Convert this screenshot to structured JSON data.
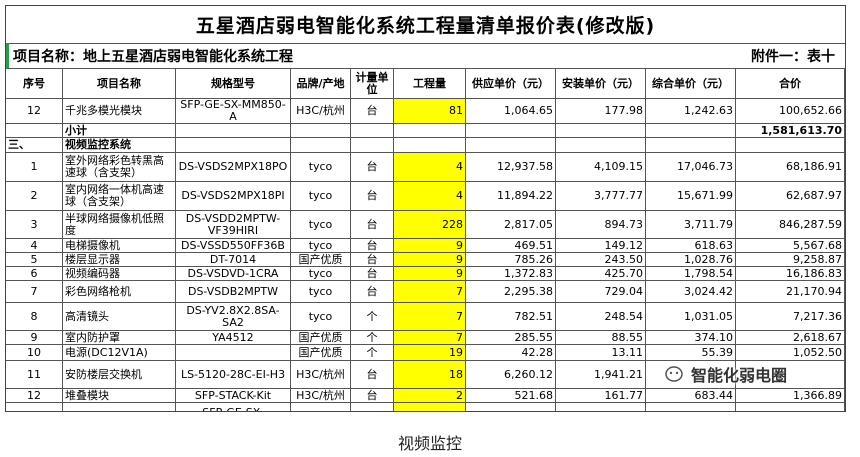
{
  "title": "五星酒店弱电智能化系统工程量清单报价表(修改版)",
  "project_name": "项目名称：地上五星酒店弱电智能化系统工程",
  "attachment": "附件一：表十",
  "header": [
    "序号",
    "项目名称",
    "规格型号",
    "品牌/产地",
    "计量单位",
    "工程量",
    "供应单价（元）",
    "安装单价（元）",
    "综合单价（元）",
    "合价"
  ],
  "rows": [
    [
      "12",
      "千兆多模光模块",
      "SFP-GE-SX-MM850-A",
      "H3C/杭州",
      "台",
      "81",
      "1,064.65",
      "177.98",
      "1,242.63",
      "100,652.66"
    ],
    [
      null,
      "小计",
      null,
      null,
      null,
      null,
      null,
      null,
      null,
      "1,581,613.70"
    ],
    [
      "三、",
      "视频监控系统",
      null,
      null,
      null,
      null,
      null,
      null,
      null,
      null
    ],
    [
      "1",
      "室外网络彩色转黑高速球（含支架）",
      "DS-VSDS2MPX18PO",
      "tyco",
      "台",
      "4",
      "12,937.58",
      "4,109.15",
      "17,046.73",
      "68,186.91"
    ],
    [
      "2",
      "室内网络一体机高速球（含支架）",
      "DS-VSDS2MPX18PI",
      "tyco",
      "台",
      "4",
      "11,894.22",
      "3,777.77",
      "15,671.99",
      "62,687.97"
    ],
    [
      "3",
      "半球网络摄像机低照度",
      "DS-VSDD2MPTW-VF39HIRI",
      "tyco",
      "台",
      "228",
      "2,817.05",
      "894.73",
      "3,711.79",
      "846,287.59"
    ],
    [
      "4",
      "电梯摄像机",
      "DS-VSSD550FF36B",
      "tyco",
      "台",
      "9",
      "469.51",
      "149.12",
      "618.63",
      "5,567.68"
    ],
    [
      "5",
      "楼层显示器",
      "DT-7014",
      "国产优质",
      "台",
      "9",
      "785.26",
      "243.50",
      "1,028.76",
      "9,258.87"
    ],
    [
      "6",
      "视频编码器",
      "DS-VSDVD-1CRA",
      "tyco",
      "台",
      "9",
      "1,372.83",
      "425.70",
      "1,798.54",
      "16,186.83"
    ],
    [
      "7",
      "彩色网络枪机",
      "DS-VSDB2MPTW",
      "tyco",
      "台",
      "7",
      "2,295.38",
      "729.04",
      "3,024.42",
      "21,170.94"
    ],
    [
      "8",
      "高清镜头",
      "DS-YV2.8X2.8SA-SA2",
      "tyco",
      "个",
      "7",
      "782.51",
      "248.54",
      "1,031.05",
      "7,217.36"
    ],
    [
      "9",
      "室内防护罩",
      "YA4512",
      "国产优质",
      "个",
      "7",
      "285.55",
      "88.55",
      "374.10",
      "2,618.67"
    ],
    [
      "10",
      "电源(DC12V1A)",
      null,
      "国产优质",
      "个",
      "19",
      "42.28",
      "13.11",
      "55.39",
      "1,052.50"
    ],
    [
      "11",
      "安防楼层交换机",
      "LS-5120-28C-EI-H3",
      "H3C/杭州",
      "台",
      "18",
      "6,260.12",
      "1,941.21",
      null,
      null
    ],
    [
      "12",
      "堆叠模块",
      "SFP-STACK-Kit",
      "H3C/杭州",
      "台",
      "2",
      "521.68",
      "161.77",
      "683.44",
      "1,366.89"
    ],
    [
      null,
      null,
      "SFP-GE-SX-",
      null,
      null,
      null,
      null,
      null,
      null,
      null
    ]
  ],
  "watermark": "智能化弱电圈",
  "caption": "视频监控"
}
